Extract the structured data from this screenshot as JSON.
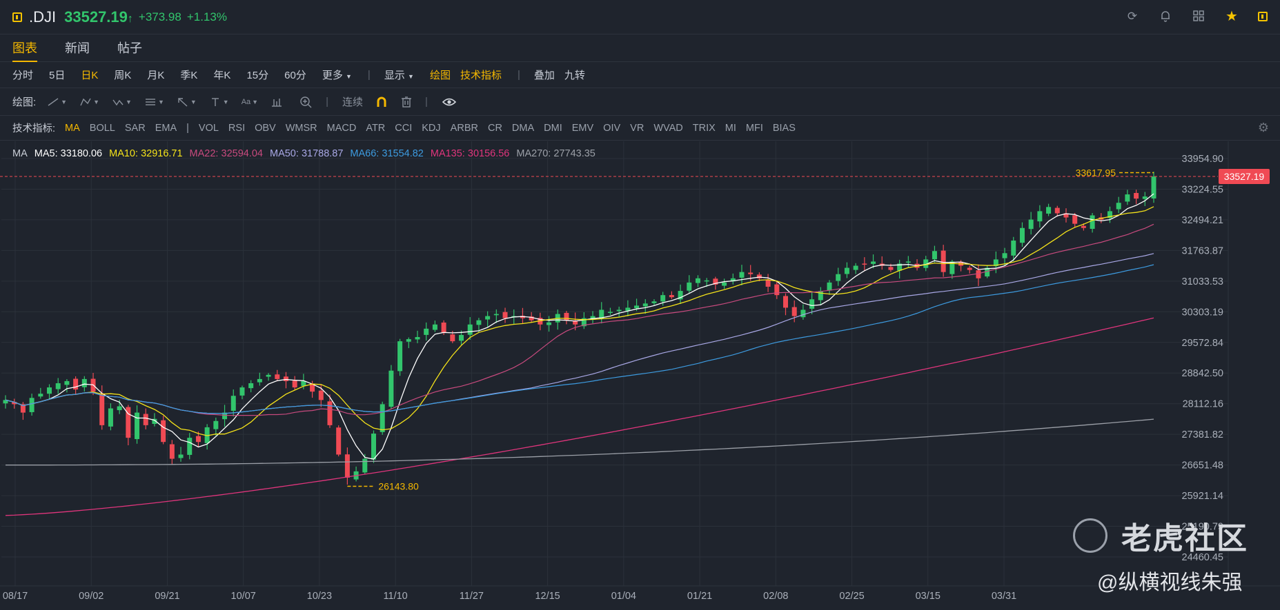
{
  "header": {
    "symbol": ".DJI",
    "price": "33527.19",
    "arrow": "↑",
    "change": "+373.98",
    "change_pct": "+1.13%",
    "icons": [
      "refresh-icon",
      "bell-icon",
      "grid-icon",
      "star-icon",
      "panel-icon"
    ]
  },
  "tabs": [
    "图表",
    "新闻",
    "帖子"
  ],
  "periods": [
    "分时",
    "5日",
    "日K",
    "周K",
    "月K",
    "季K",
    "年K",
    "15分",
    "60分",
    "更多"
  ],
  "toolbar": {
    "display": "显示",
    "draw": "绘图",
    "indicators": "技术指标",
    "overlay": "叠加",
    "nine_turn": "九转"
  },
  "drawbar": {
    "label": "绘图:",
    "continuous": "连续"
  },
  "indbar": {
    "label": "技术指标:",
    "items": [
      "MA",
      "BOLL",
      "SAR",
      "EMA",
      "|",
      "VOL",
      "RSI",
      "OBV",
      "WMSR",
      "MACD",
      "ATR",
      "CCI",
      "KDJ",
      "ARBR",
      "CR",
      "DMA",
      "DMI",
      "EMV",
      "OIV",
      "VR",
      "WVAD",
      "TRIX",
      "MI",
      "MFI",
      "BIAS"
    ]
  },
  "legend": {
    "ma": "MA",
    "ma5_label": "MA5:",
    "ma5": "33180.06",
    "ma10_label": "MA10:",
    "ma10": "32916.71",
    "ma22_label": "MA22:",
    "ma22": "32594.04",
    "ma50_label": "MA50:",
    "ma50": "31788.87",
    "ma66_label": "MA66:",
    "ma66": "31554.82",
    "ma135_label": "MA135:",
    "ma135": "30156.56",
    "ma270_label": "MA270:",
    "ma270": "27743.35"
  },
  "colors": {
    "up": "#32c56c",
    "down": "#f04a54",
    "ma5": "#ffffff",
    "ma10": "#f5e31a",
    "ma22": "#c84a7e",
    "ma50": "#a9a8e6",
    "ma66": "#3d9be0",
    "ma135": "#e0357c",
    "ma270": "#9ca0a8",
    "grid": "#2b313a",
    "accent": "#f5b800"
  },
  "chart_data": {
    "type": "candlestick",
    "y_ticks": [
      "33954.90",
      "33224.55",
      "32494.21",
      "31763.87",
      "31033.53",
      "30303.19",
      "29572.84",
      "28842.50",
      "28112.16",
      "27381.82",
      "26651.48",
      "25921.14",
      "25190.79",
      "24460.45"
    ],
    "x_ticks": [
      "08/17",
      "09/02",
      "09/21",
      "10/07",
      "10/23",
      "11/10",
      "11/27",
      "12/15",
      "01/04",
      "01/21",
      "02/08",
      "02/25",
      "03/15",
      "03/31"
    ],
    "last_price": "33527.19",
    "high_label": "33617.95",
    "low_label": "26143.80",
    "ylim": [
      24460.45,
      33954.9
    ],
    "close": [
      28200,
      28100,
      27900,
      28250,
      28350,
      28500,
      28600,
      28650,
      28450,
      28700,
      28400,
      27600,
      28000,
      28050,
      27300,
      27900,
      27600,
      27750,
      27200,
      26800,
      26900,
      27300,
      27200,
      27550,
      27700,
      27900,
      28300,
      28500,
      28600,
      28700,
      28800,
      28700,
      28650,
      28500,
      28650,
      28400,
      28200,
      27600,
      26900,
      26350,
      26500,
      26800,
      27400,
      28100,
      28900,
      29600,
      29650,
      29700,
      29900,
      30000,
      29800,
      29600,
      29750,
      30000,
      30100,
      30200,
      30250,
      30150,
      30200,
      30150,
      30100,
      30000,
      30050,
      30250,
      30100,
      30000,
      30150,
      30200,
      30350,
      30300,
      30350,
      30400,
      30450,
      30500,
      30550,
      30700,
      30650,
      30800,
      31000,
      31100,
      31050,
      30950,
      31000,
      31100,
      31250,
      31200,
      31100,
      30900,
      30700,
      30400,
      30200,
      30350,
      30600,
      30800,
      31000,
      31200,
      31350,
      31400,
      31450,
      31500,
      31400,
      31300,
      31450,
      31500,
      31350,
      31550,
      31750,
      31250,
      31500,
      31400,
      31300,
      31100,
      31350,
      31550,
      31700,
      32000,
      32300,
      32500,
      32700,
      32800,
      32650,
      32550,
      32400,
      32300,
      32600,
      32500,
      32700,
      32900,
      33100,
      33000,
      33050,
      33527
    ]
  }
}
